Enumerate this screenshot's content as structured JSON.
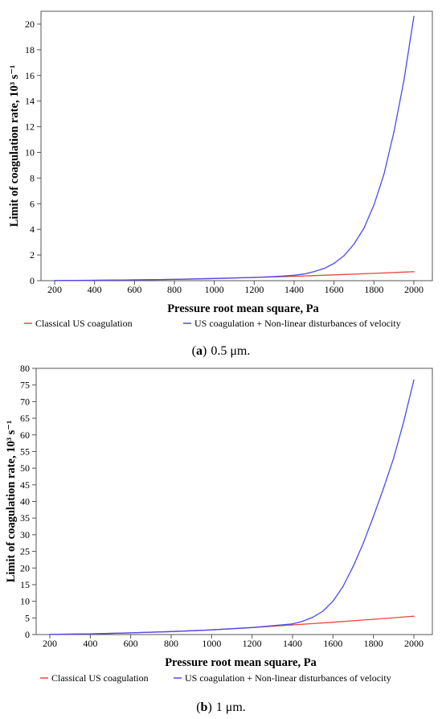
{
  "colors": {
    "red_series": "#e8483d",
    "blue_series": "#4b4bf0",
    "frame": "#555555"
  },
  "chart_data": [
    {
      "type": "line",
      "xlabel": "Pressure root mean square, Pa",
      "ylabel": "Limit of coagulation rate, 10³ s⁻¹",
      "xlim": [
        200,
        2000
      ],
      "ylim": [
        0,
        21
      ],
      "xticks": [
        200,
        400,
        600,
        800,
        1000,
        1200,
        1400,
        1600,
        1800,
        2000
      ],
      "yticks": [
        0,
        2,
        4,
        6,
        8,
        10,
        12,
        14,
        16,
        18,
        20
      ],
      "grid": false,
      "legend_position": "bottom",
      "caption_prefix": "(a)",
      "caption_text": "0.5 μm.",
      "series": [
        {
          "name": "Classical US coagulation",
          "color": "#e8483d",
          "x": [
            200,
            400,
            600,
            800,
            1000,
            1200,
            1400,
            1600,
            1800,
            2000
          ],
          "values": [
            0.01,
            0.03,
            0.06,
            0.1,
            0.17,
            0.25,
            0.34,
            0.45,
            0.57,
            0.7
          ]
        },
        {
          "name": "US coagulation + Non-linear disturbances of velocity",
          "color": "#4b4bf0",
          "x": [
            200,
            400,
            600,
            800,
            1000,
            1200,
            1300,
            1400,
            1450,
            1500,
            1550,
            1600,
            1650,
            1700,
            1750,
            1800,
            1850,
            1900,
            1950,
            2000
          ],
          "values": [
            0.01,
            0.03,
            0.06,
            0.1,
            0.17,
            0.26,
            0.32,
            0.42,
            0.52,
            0.7,
            0.95,
            1.35,
            1.95,
            2.85,
            4.1,
            5.9,
            8.3,
            11.6,
            15.6,
            20.6
          ]
        }
      ]
    },
    {
      "type": "line",
      "xlabel": "Pressure root mean square, Pa",
      "ylabel": "Limit of coagulation rate, 10³ s⁻¹",
      "xlim": [
        200,
        2000
      ],
      "ylim": [
        0,
        80
      ],
      "xticks": [
        200,
        400,
        600,
        800,
        1000,
        1200,
        1400,
        1600,
        1800,
        2000
      ],
      "yticks": [
        0,
        5,
        10,
        15,
        20,
        25,
        30,
        35,
        40,
        45,
        50,
        55,
        60,
        65,
        70,
        75,
        80
      ],
      "grid": false,
      "legend_position": "bottom",
      "caption_prefix": "(b)",
      "caption_text": "1 μm.",
      "series": [
        {
          "name": "Classical US coagulation",
          "color": "#e8483d",
          "x": [
            200,
            400,
            600,
            800,
            1000,
            1200,
            1400,
            1600,
            1800,
            2000
          ],
          "values": [
            0.05,
            0.2,
            0.5,
            0.9,
            1.4,
            2.1,
            2.9,
            3.7,
            4.6,
            5.5
          ]
        },
        {
          "name": "US coagulation + Non-linear disturbances of velocity",
          "color": "#4b4bf0",
          "x": [
            200,
            400,
            600,
            800,
            1000,
            1200,
            1400,
            1450,
            1500,
            1550,
            1600,
            1650,
            1700,
            1750,
            1800,
            1850,
            1900,
            1950,
            2000
          ],
          "values": [
            0.05,
            0.2,
            0.5,
            0.9,
            1.4,
            2.1,
            3.2,
            4.0,
            5.2,
            7.0,
            10.0,
            14.5,
            20.5,
            27.5,
            35.5,
            44.0,
            53.0,
            64.0,
            76.5
          ]
        }
      ]
    }
  ]
}
